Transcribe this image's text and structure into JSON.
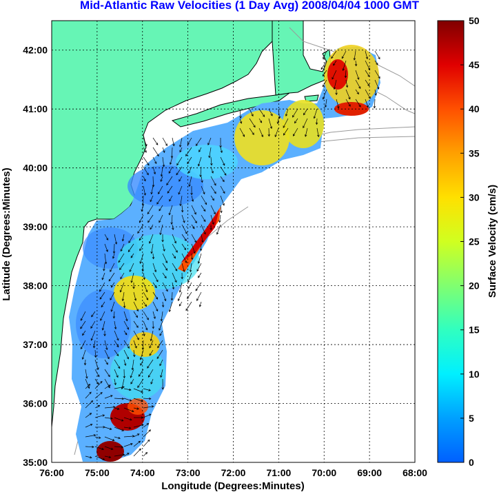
{
  "title": "Mid-Atlantic Raw Velocities (1 Day Avg) 2008/04/04 1000 GMT",
  "x_axis": {
    "label": "Longitude (Degrees:Minutes)",
    "ticks": [
      "76:00",
      "75:00",
      "74:00",
      "73:00",
      "72:00",
      "71:00",
      "70:00",
      "69:00",
      "68:00"
    ],
    "values": [
      -76,
      -75,
      -74,
      -73,
      -72,
      -71,
      -70,
      -69,
      -68
    ]
  },
  "y_axis": {
    "label": "Latitude (Degrees:Minutes)",
    "ticks": [
      "35:00",
      "36:00",
      "37:00",
      "38:00",
      "39:00",
      "40:00",
      "41:00",
      "42:00"
    ],
    "values": [
      35,
      36,
      37,
      38,
      39,
      40,
      41,
      42
    ]
  },
  "colorbar": {
    "label": "Surface Velocity (cm/s)",
    "min": 0,
    "max": 50,
    "ticks": [
      "0",
      "5",
      "10",
      "15",
      "20",
      "25",
      "30",
      "35",
      "40",
      "45",
      "50"
    ],
    "colors": [
      "#0080ff",
      "#00c0ff",
      "#00ffff",
      "#20ffd0",
      "#60ff90",
      "#b0ff40",
      "#ffff00",
      "#ffc000",
      "#ff8000",
      "#ff2000",
      "#d00000",
      "#800000"
    ]
  },
  "colors": {
    "land": "#66f5b5",
    "coast_outline": "#000000",
    "bathymetry": "#999999",
    "grid": "#000000"
  },
  "layers": [
    "land",
    "bathymetry",
    "velocity-field",
    "current-vectors",
    "grid"
  ]
}
